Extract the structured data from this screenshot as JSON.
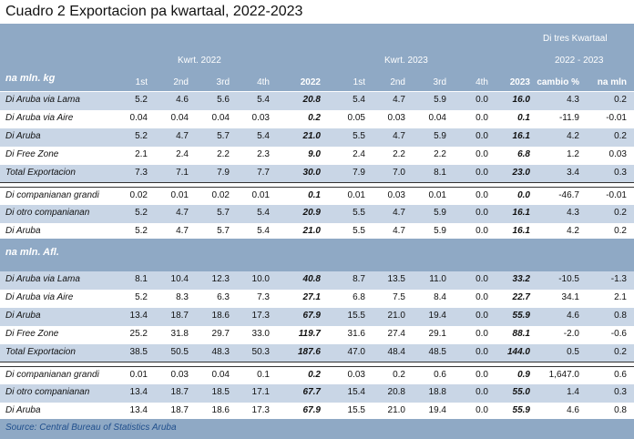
{
  "title": "Cuadro 2 Exportacion pa kwartaal, 2022-2023",
  "header": {
    "di_tres_kwartaal": "Di tres Kwartaal",
    "group_2022": "Kwrt. 2022",
    "group_2023": "Kwrt. 2023",
    "change_period": "2022 - 2023",
    "unit_kg": "na mln. kg",
    "columns": [
      "1st",
      "2nd",
      "3rd",
      "4th",
      "2022",
      "1st",
      "2nd",
      "3rd",
      "4th",
      "2023",
      "cambio %",
      "na mln"
    ]
  },
  "section1": {
    "rows": [
      {
        "label": "Di Aruba via Lama",
        "v": [
          "5.2",
          "4.6",
          "5.6",
          "5.4",
          "20.8",
          "5.4",
          "4.7",
          "5.9",
          "0.0",
          "16.0",
          "4.3",
          "0.2"
        ]
      },
      {
        "label": "Di Aruba via  Aire",
        "v": [
          "0.04",
          "0.04",
          "0.04",
          "0.03",
          "0.2",
          "0.05",
          "0.03",
          "0.04",
          "0.0",
          "0.1",
          "-11.9",
          "-0.01"
        ]
      },
      {
        "label": "Di Aruba",
        "v": [
          "5.2",
          "4.7",
          "5.7",
          "5.4",
          "21.0",
          "5.5",
          "4.7",
          "5.9",
          "0.0",
          "16.1",
          "4.2",
          "0.2"
        ]
      },
      {
        "label": "Di Free Zone",
        "v": [
          "2.1",
          "2.4",
          "2.2",
          "2.3",
          "9.0",
          "2.4",
          "2.2",
          "2.2",
          "0.0",
          "6.8",
          "1.2",
          "0.03"
        ]
      },
      {
        "label": "Total Exportacion",
        "v": [
          "7.3",
          "7.1",
          "7.9",
          "7.7",
          "30.0",
          "7.9",
          "7.0",
          "8.1",
          "0.0",
          "23.0",
          "3.4",
          "0.3"
        ]
      },
      {
        "label": "Di companianan grandi",
        "v": [
          "0.02",
          "0.01",
          "0.02",
          "0.01",
          "0.1",
          "0.01",
          "0.03",
          "0.01",
          "0.0",
          "0.0",
          "-46.7",
          "-0.01"
        ]
      },
      {
        "label": "Di otro companianan",
        "v": [
          "5.2",
          "4.7",
          "5.7",
          "5.4",
          "20.9",
          "5.5",
          "4.7",
          "5.9",
          "0.0",
          "16.1",
          "4.3",
          "0.2"
        ]
      },
      {
        "label": "Di Aruba",
        "v": [
          "5.2",
          "4.7",
          "5.7",
          "5.4",
          "21.0",
          "5.5",
          "4.7",
          "5.9",
          "0.0",
          "16.1",
          "4.2",
          "0.2"
        ]
      }
    ]
  },
  "section2": {
    "unit": "na mln. Afl.",
    "rows": [
      {
        "label": "Di Aruba via Lama",
        "v": [
          "8.1",
          "10.4",
          "12.3",
          "10.0",
          "40.8",
          "8.7",
          "13.5",
          "11.0",
          "0.0",
          "33.2",
          "-10.5",
          "-1.3"
        ]
      },
      {
        "label": "Di Aruba via  Aire",
        "v": [
          "5.2",
          "8.3",
          "6.3",
          "7.3",
          "27.1",
          "6.8",
          "7.5",
          "8.4",
          "0.0",
          "22.7",
          "34.1",
          "2.1"
        ]
      },
      {
        "label": "Di Aruba",
        "v": [
          "13.4",
          "18.7",
          "18.6",
          "17.3",
          "67.9",
          "15.5",
          "21.0",
          "19.4",
          "0.0",
          "55.9",
          "4.6",
          "0.8"
        ]
      },
      {
        "label": "Di Free Zone",
        "v": [
          "25.2",
          "31.8",
          "29.7",
          "33.0",
          "119.7",
          "31.6",
          "27.4",
          "29.1",
          "0.0",
          "88.1",
          "-2.0",
          "-0.6"
        ]
      },
      {
        "label": "Total Exportacion",
        "v": [
          "38.5",
          "50.5",
          "48.3",
          "50.3",
          "187.6",
          "47.0",
          "48.4",
          "48.5",
          "0.0",
          "144.0",
          "0.5",
          "0.2"
        ]
      },
      {
        "label": "Di companianan grandi",
        "v": [
          "0.01",
          "0.03",
          "0.04",
          "0.1",
          "0.2",
          "0.03",
          "0.2",
          "0.6",
          "0.0",
          "0.9",
          "1,647.0",
          "0.6"
        ]
      },
      {
        "label": "Di otro companianan",
        "v": [
          "13.4",
          "18.7",
          "18.5",
          "17.1",
          "67.7",
          "15.4",
          "20.8",
          "18.8",
          "0.0",
          "55.0",
          "1.4",
          "0.3"
        ]
      },
      {
        "label": "Di Aruba",
        "v": [
          "13.4",
          "18.7",
          "18.6",
          "17.3",
          "67.9",
          "15.5",
          "21.0",
          "19.4",
          "0.0",
          "55.9",
          "4.6",
          "0.8"
        ]
      }
    ]
  },
  "source": "Source: Central Bureau of Statistics Aruba",
  "colors": {
    "header_band": "#8fa9c5",
    "row_shade": "#c9d6e6",
    "source_text": "#1f4e8c"
  }
}
